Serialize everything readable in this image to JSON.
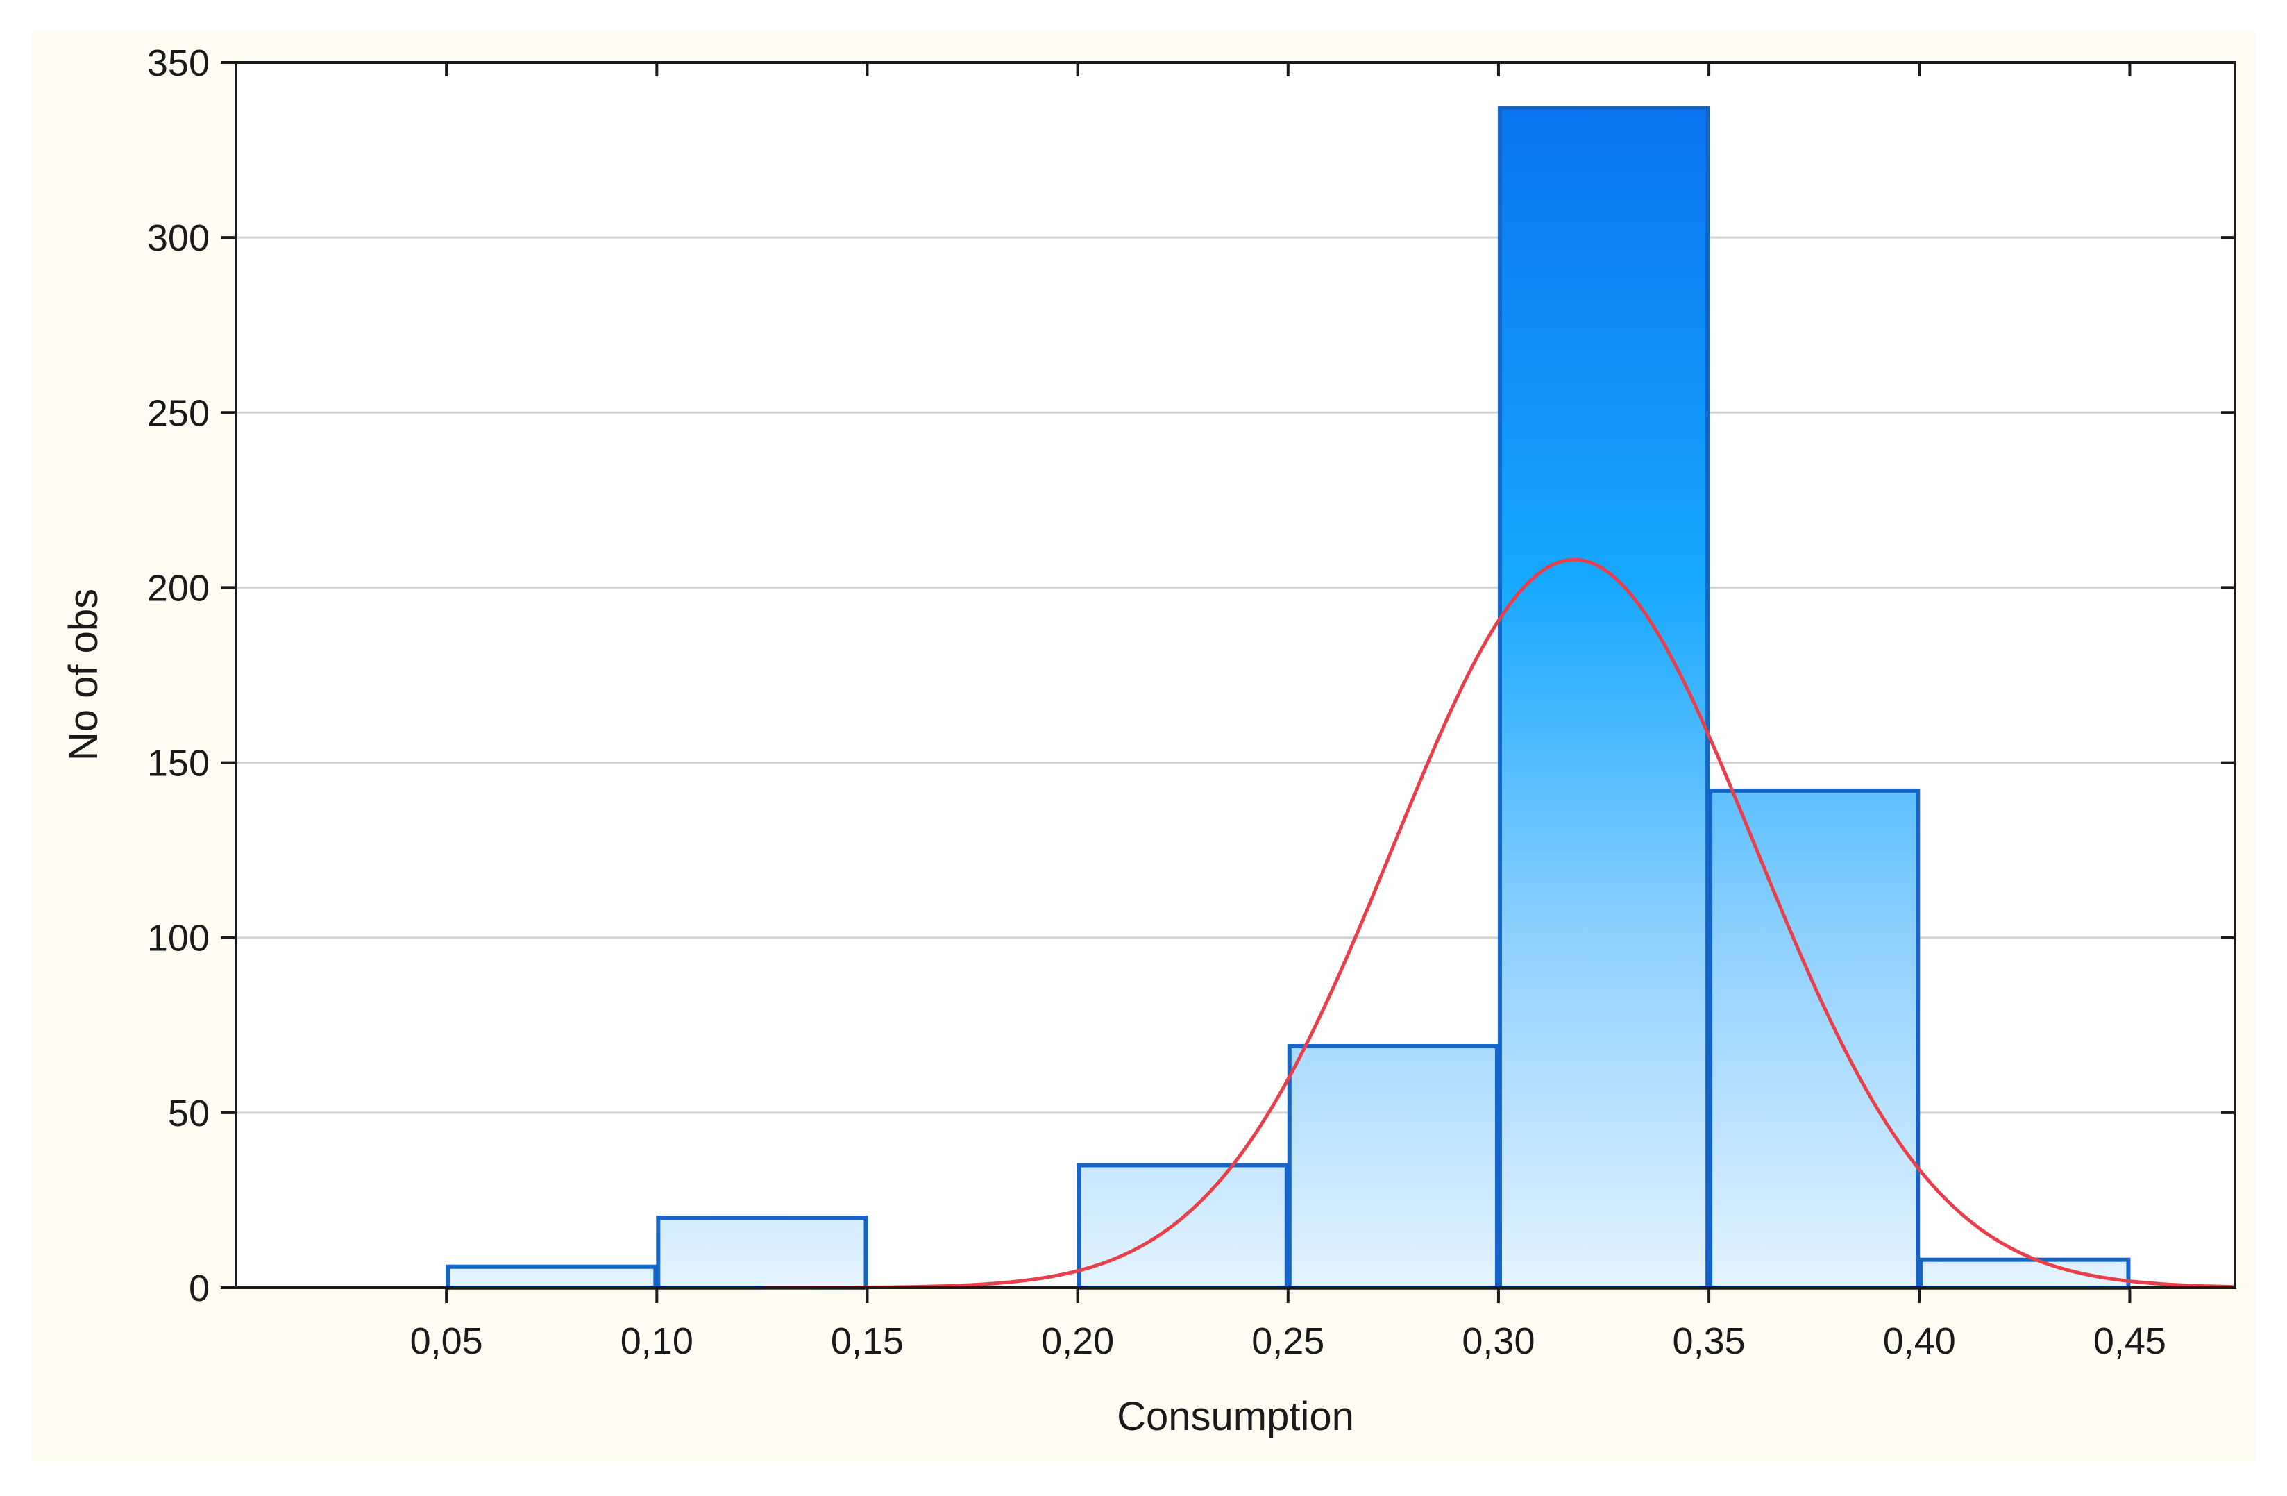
{
  "chart_data": {
    "type": "bar",
    "xlabel": "Consumption",
    "ylabel": "No of obs",
    "xlim": [
      0,
      0.475
    ],
    "ylim": [
      0,
      350
    ],
    "x_ticks": [
      {
        "value": 0.05,
        "label": "0,05"
      },
      {
        "value": 0.1,
        "label": "0,10"
      },
      {
        "value": 0.15,
        "label": "0,15"
      },
      {
        "value": 0.2,
        "label": "0,20"
      },
      {
        "value": 0.25,
        "label": "0,25"
      },
      {
        "value": 0.3,
        "label": "0,30"
      },
      {
        "value": 0.35,
        "label": "0,35"
      },
      {
        "value": 0.4,
        "label": "0,40"
      },
      {
        "value": 0.45,
        "label": "0,45"
      }
    ],
    "y_ticks": [
      {
        "value": 0,
        "label": "0"
      },
      {
        "value": 50,
        "label": "50"
      },
      {
        "value": 100,
        "label": "100"
      },
      {
        "value": 150,
        "label": "150"
      },
      {
        "value": 200,
        "label": "200"
      },
      {
        "value": 250,
        "label": "250"
      },
      {
        "value": 300,
        "label": "300"
      },
      {
        "value": 350,
        "label": "350"
      }
    ],
    "bins": [
      {
        "from": 0.05,
        "to": 0.1,
        "count": 6
      },
      {
        "from": 0.1,
        "to": 0.15,
        "count": 20
      },
      {
        "from": 0.15,
        "to": 0.2,
        "count": 0
      },
      {
        "from": 0.2,
        "to": 0.25,
        "count": 35
      },
      {
        "from": 0.25,
        "to": 0.3,
        "count": 69
      },
      {
        "from": 0.3,
        "to": 0.35,
        "count": 337
      },
      {
        "from": 0.35,
        "to": 0.4,
        "count": 142
      },
      {
        "from": 0.4,
        "to": 0.45,
        "count": 8
      }
    ],
    "normal_fit": {
      "mean": 0.318,
      "sd": 0.043,
      "peak": 208,
      "x_start": 0.125,
      "x_end": 0.475,
      "color": "#e8404a"
    },
    "grid": true,
    "colors": {
      "bar_top": "#0a74f0",
      "bar_mid": "#16a8ff",
      "bar_light": "#e6f4ff",
      "bar_edge": "#1565c8",
      "grid": "#d4d4d4",
      "frame_bg": "#fefbf1"
    }
  }
}
